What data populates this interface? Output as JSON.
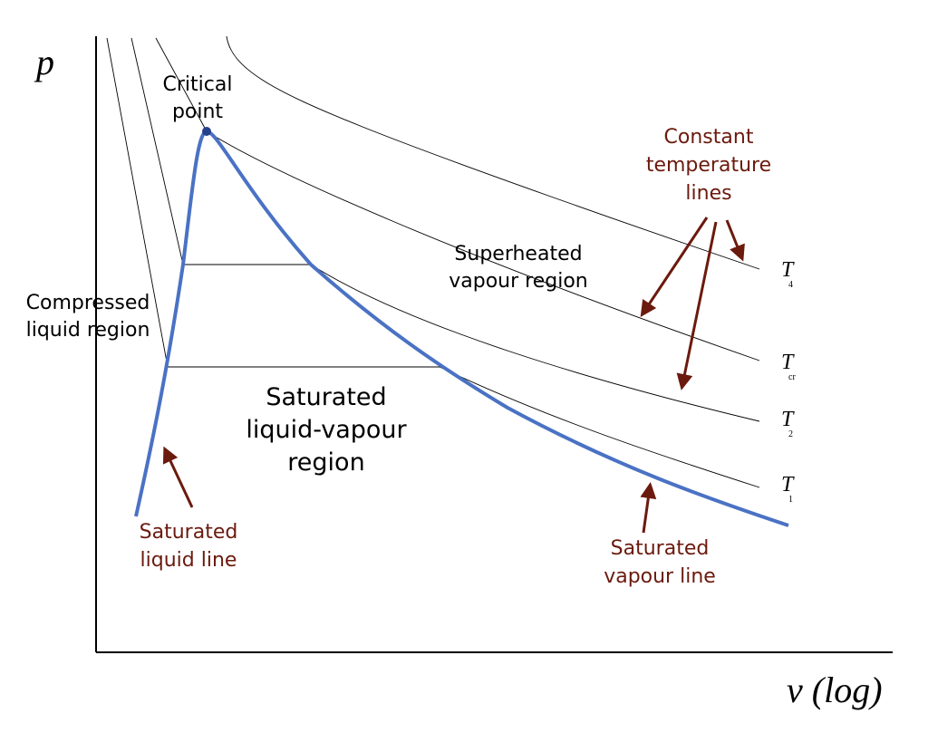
{
  "axes": {
    "y_label": "p",
    "x_label": "v (log)"
  },
  "regions": {
    "critical_point": [
      "Critical",
      "point"
    ],
    "superheated": [
      "Superheated",
      "vapour region"
    ],
    "compressed": [
      "Compressed",
      "liquid region"
    ],
    "saturated_mix": [
      "Saturated",
      "liquid-vapour",
      "region"
    ]
  },
  "annotations": {
    "constant_temperature": [
      "Constant",
      "temperature",
      "lines"
    ],
    "saturated_liquid": [
      "Saturated",
      "liquid line"
    ],
    "saturated_vapour": [
      "Saturated",
      "vapour line"
    ]
  },
  "isotherms": [
    {
      "symbol": "T",
      "subscript": "4"
    },
    {
      "symbol": "T",
      "subscript": "cr"
    },
    {
      "symbol": "T",
      "subscript": "2"
    },
    {
      "symbol": "T",
      "subscript": "1"
    }
  ]
}
